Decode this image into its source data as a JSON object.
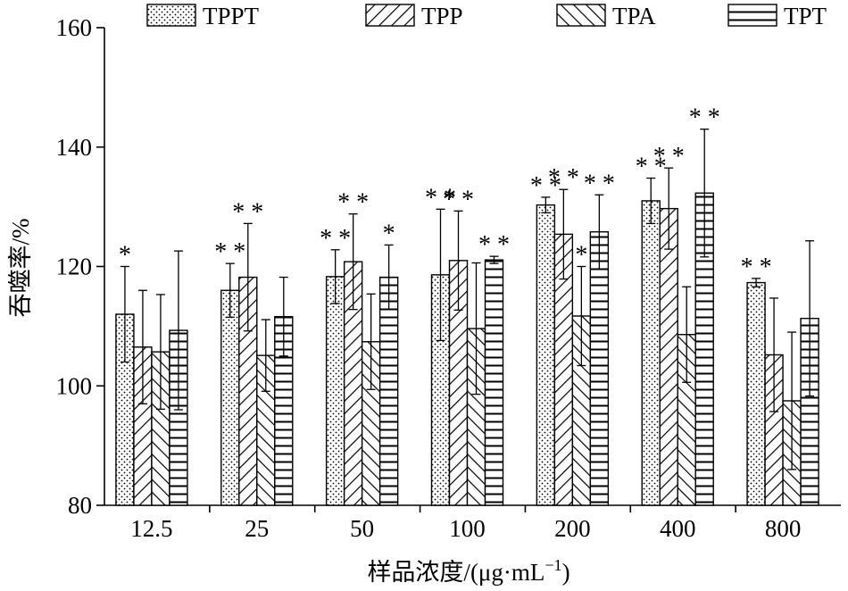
{
  "chart_data": {
    "type": "bar",
    "xlabel": "样品浓度/(μg·mL",
    "xlabel_sup": "−1",
    "xlabel_end": ")",
    "ylabel": "吞噬率/%",
    "ylim": [
      80,
      160
    ],
    "yticks": [
      80,
      100,
      120,
      140,
      160
    ],
    "categories": [
      "12.5",
      "25",
      "50",
      "100",
      "200",
      "400",
      "800"
    ],
    "legend_position": "top",
    "series": [
      {
        "name": "TPPT",
        "pattern": "dots",
        "values": [
          112.0,
          116.0,
          118.3,
          118.6,
          130.3,
          131.0,
          117.3
        ],
        "errors": [
          8.0,
          4.5,
          4.5,
          11.0,
          1.3,
          3.8,
          0.7
        ],
        "significance": [
          "*",
          "**",
          "**",
          "**",
          "**",
          "**",
          "**"
        ]
      },
      {
        "name": "TPP",
        "pattern": "diagonal-forward",
        "values": [
          106.5,
          118.2,
          120.8,
          121.0,
          125.4,
          129.7,
          105.2
        ],
        "errors": [
          9.5,
          9.0,
          8.0,
          8.3,
          7.5,
          6.8,
          9.5
        ],
        "significance": [
          "",
          "**",
          "**",
          "**",
          "**",
          "**",
          ""
        ]
      },
      {
        "name": "TPA",
        "pattern": "diagonal-back",
        "values": [
          105.7,
          105.1,
          107.4,
          109.6,
          111.7,
          108.6,
          97.5
        ],
        "errors": [
          9.6,
          6.0,
          8.0,
          11.0,
          8.3,
          8.0,
          11.5
        ],
        "significance": [
          "",
          "",
          "",
          "",
          "*",
          "",
          ""
        ]
      },
      {
        "name": "TPT",
        "pattern": "horizontal",
        "values": [
          109.3,
          111.6,
          118.2,
          121.1,
          125.8,
          132.3,
          111.3
        ],
        "errors": [
          13.3,
          6.6,
          5.4,
          0.6,
          6.2,
          10.7,
          13.0
        ],
        "significance": [
          "",
          "",
          "*",
          "**",
          "**",
          "**",
          ""
        ]
      }
    ]
  }
}
